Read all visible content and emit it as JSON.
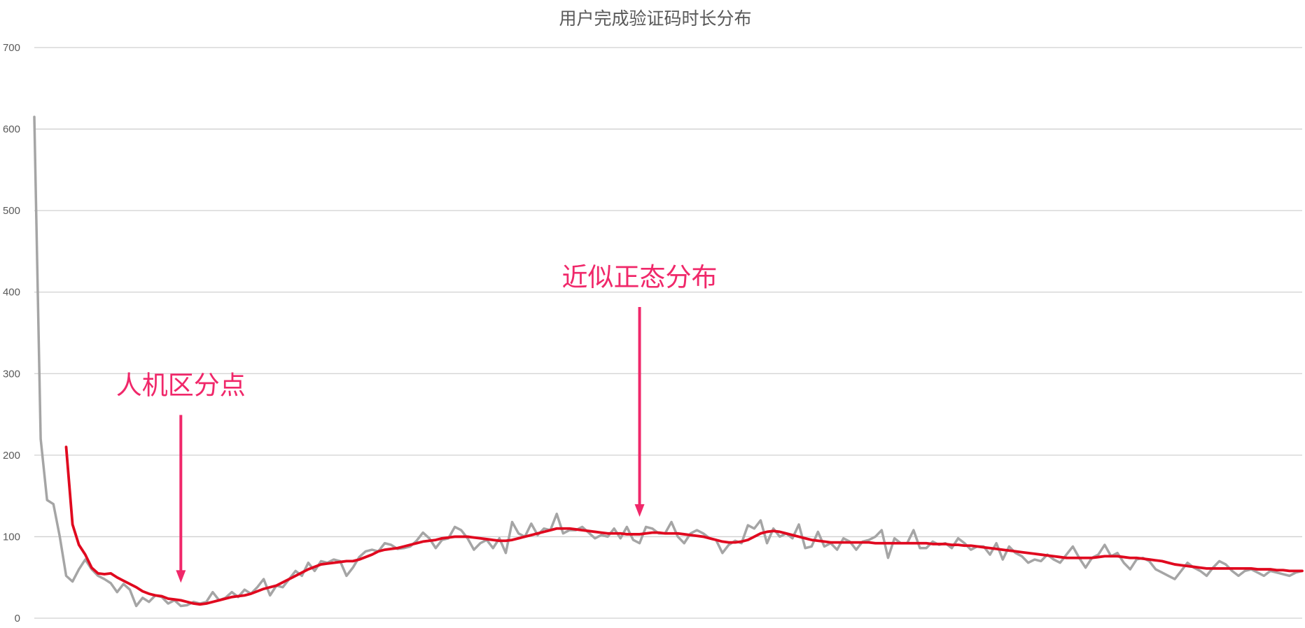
{
  "chart_data": {
    "type": "line",
    "title": "用户完成验证码时长分布",
    "xlabel": "",
    "ylabel": "",
    "ylim": [
      0,
      700
    ],
    "yticks": [
      0,
      100,
      200,
      300,
      400,
      500,
      600,
      700
    ],
    "ytick_labels": [
      "0",
      "100",
      "200",
      "300",
      "400",
      "500",
      "600",
      "700"
    ],
    "grid": true,
    "legend": "none",
    "x": [
      1,
      2,
      3,
      4,
      5,
      6,
      7,
      8,
      9,
      10,
      11,
      12,
      13,
      14,
      15,
      16,
      17,
      18,
      19,
      20,
      21,
      22,
      23,
      24,
      25,
      26,
      27,
      28,
      29,
      30,
      31,
      32,
      33,
      34,
      35,
      36,
      37,
      38,
      39,
      40,
      41,
      42,
      43,
      44,
      45,
      46,
      47,
      48,
      49,
      50,
      51,
      52,
      53,
      54,
      55,
      56,
      57,
      58,
      59,
      60,
      61,
      62,
      63,
      64,
      65,
      66,
      67,
      68,
      69,
      70,
      71,
      72,
      73,
      74,
      75,
      76,
      77,
      78,
      79,
      80,
      81,
      82,
      83,
      84,
      85,
      86,
      87,
      88,
      89,
      90,
      91,
      92,
      93,
      94,
      95,
      96,
      97,
      98,
      99,
      100,
      101,
      102,
      103,
      104,
      105,
      106,
      107,
      108,
      109,
      110,
      111,
      112,
      113,
      114,
      115,
      116,
      117,
      118,
      119,
      120,
      121,
      122,
      123,
      124,
      125,
      126,
      127,
      128,
      129,
      130,
      131,
      132,
      133,
      134,
      135,
      136,
      137,
      138,
      139,
      140,
      141,
      142,
      143,
      144,
      145,
      146,
      147,
      148,
      149,
      150,
      151,
      152,
      153,
      154,
      155,
      156,
      157,
      158,
      159,
      160,
      161,
      162,
      163,
      164,
      165,
      166,
      167,
      168,
      169,
      170,
      171,
      172,
      173,
      174,
      175,
      176,
      177,
      178,
      179,
      180,
      181,
      182,
      183,
      184,
      185,
      186,
      187,
      188,
      189,
      190,
      191,
      192,
      193,
      194,
      195,
      196,
      197,
      198,
      199,
      200
    ],
    "series": [
      {
        "name": "",
        "color": "#a5a5a5",
        "values": [
          615,
          220,
          145,
          140,
          100,
          52,
          45,
          60,
          72,
          60,
          52,
          48,
          43,
          32,
          42,
          35,
          15,
          25,
          20,
          28,
          26,
          18,
          22,
          15,
          16,
          20,
          18,
          20,
          32,
          22,
          25,
          32,
          26,
          35,
          30,
          38,
          48,
          28,
          40,
          38,
          48,
          58,
          52,
          68,
          58,
          70,
          68,
          72,
          70,
          52,
          62,
          75,
          82,
          84,
          82,
          92,
          90,
          85,
          86,
          88,
          95,
          105,
          98,
          86,
          96,
          98,
          112,
          108,
          98,
          84,
          92,
          96,
          86,
          98,
          80,
          118,
          104,
          100,
          116,
          102,
          110,
          108,
          128,
          104,
          108,
          108,
          112,
          105,
          98,
          102,
          100,
          110,
          98,
          112,
          96,
          92,
          112,
          110,
          104,
          104,
          118,
          100,
          92,
          104,
          108,
          104,
          98,
          96,
          80,
          90,
          95,
          92,
          114,
          110,
          120,
          92,
          110,
          100,
          104,
          98,
          115,
          86,
          88,
          106,
          88,
          92,
          84,
          98,
          94,
          84,
          94,
          96,
          100,
          108,
          74,
          98,
          92,
          92,
          108,
          86,
          86,
          94,
          90,
          92,
          86,
          98,
          92,
          84,
          88,
          88,
          78,
          92,
          72,
          88,
          80,
          76,
          68,
          72,
          70,
          78,
          72,
          68,
          78,
          88,
          74,
          62,
          74,
          78,
          90,
          76,
          80,
          68,
          60,
          72,
          74,
          70,
          60,
          56,
          52,
          48,
          58,
          68,
          62,
          58,
          52,
          62,
          70,
          66,
          58,
          52,
          58,
          60,
          56,
          52,
          58,
          56,
          54,
          52,
          56,
          58
        ]
      },
      {
        "name": "",
        "color": "#e0091f",
        "values": [
          null,
          null,
          null,
          null,
          null,
          210,
          115,
          90,
          78,
          62,
          55,
          54,
          55,
          50,
          46,
          42,
          38,
          33,
          30,
          28,
          27,
          24,
          23,
          22,
          20,
          18,
          17,
          18,
          20,
          22,
          24,
          26,
          27,
          28,
          30,
          33,
          36,
          38,
          40,
          44,
          48,
          52,
          56,
          60,
          63,
          66,
          67,
          68,
          69,
          70,
          70,
          72,
          75,
          78,
          82,
          84,
          85,
          86,
          88,
          90,
          92,
          94,
          95,
          96,
          98,
          99,
          100,
          100,
          100,
          99,
          98,
          97,
          96,
          95,
          95,
          96,
          98,
          100,
          102,
          104,
          106,
          108,
          110,
          110,
          110,
          109,
          108,
          107,
          106,
          105,
          104,
          104,
          104,
          103,
          103,
          103,
          104,
          105,
          105,
          104,
          104,
          104,
          103,
          102,
          101,
          100,
          98,
          96,
          94,
          93,
          93,
          94,
          96,
          100,
          104,
          106,
          107,
          106,
          104,
          102,
          100,
          98,
          96,
          95,
          94,
          93,
          93,
          93,
          93,
          93,
          93,
          93,
          92,
          92,
          92,
          92,
          92,
          92,
          92,
          92,
          92,
          91,
          91,
          91,
          90,
          90,
          89,
          89,
          88,
          87,
          86,
          85,
          84,
          83,
          82,
          81,
          80,
          79,
          78,
          77,
          76,
          75,
          74,
          74,
          74,
          74,
          74,
          75,
          76,
          76,
          76,
          75,
          74,
          74,
          73,
          72,
          71,
          70,
          68,
          66,
          65,
          64,
          63,
          62,
          61,
          61,
          61,
          61,
          61,
          61,
          61,
          61,
          60,
          60,
          60,
          59,
          59,
          58,
          58,
          58
        ]
      }
    ],
    "annotations": [
      {
        "text": "人机区分点",
        "x": 24,
        "y": 52,
        "color": "#f0286a"
      },
      {
        "text": "近似正态分布",
        "x": 96,
        "y": 133,
        "color": "#f0286a"
      }
    ]
  }
}
